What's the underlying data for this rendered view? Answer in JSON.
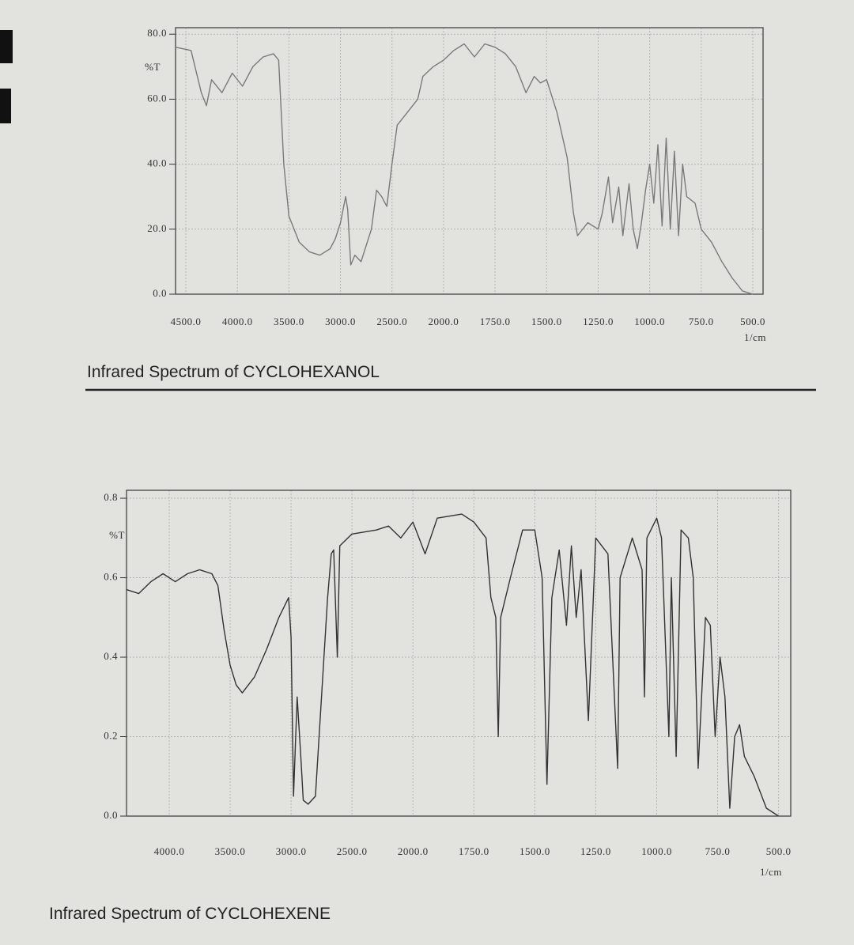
{
  "chart_data": [
    {
      "type": "line",
      "title": "Infrared Spectrum of CYCLOHEXANOL",
      "y_label": "%T",
      "x_label": "1/cm",
      "color": "#7a7a7a",
      "grid": true,
      "xlim": [
        4600,
        450
      ],
      "ylim": [
        0,
        82
      ],
      "xticks": [
        {
          "value": 4500,
          "label": "4500.0"
        },
        {
          "value": 4000,
          "label": "4000.0"
        },
        {
          "value": 3500,
          "label": "3500.0"
        },
        {
          "value": 3000,
          "label": "3000.0"
        },
        {
          "value": 2500,
          "label": "2500.0"
        },
        {
          "value": 2000,
          "label": "2000.0"
        },
        {
          "value": 1750,
          "label": "1750.0"
        },
        {
          "value": 1500,
          "label": "1500.0"
        },
        {
          "value": 1250,
          "label": "1250.0"
        },
        {
          "value": 1000,
          "label": "1000.0"
        },
        {
          "value": 750,
          "label": "750.0"
        },
        {
          "value": 500,
          "label": "500.0"
        }
      ],
      "yticks": [
        {
          "value": 0,
          "label": "0.0"
        },
        {
          "value": 20,
          "label": "20.0"
        },
        {
          "value": 40,
          "label": "40.0"
        },
        {
          "value": 60,
          "label": "60.0"
        },
        {
          "value": 80,
          "label": "80.0"
        }
      ],
      "x": [
        4600,
        4450,
        4350,
        4300,
        4250,
        4150,
        4050,
        3950,
        3850,
        3750,
        3650,
        3600,
        3550,
        3500,
        3400,
        3300,
        3200,
        3100,
        3050,
        3000,
        2950,
        2930,
        2900,
        2860,
        2800,
        2700,
        2650,
        2600,
        2550,
        2500,
        2450,
        2350,
        2250,
        2200,
        2100,
        2000,
        1950,
        1900,
        1850,
        1800,
        1750,
        1700,
        1650,
        1600,
        1560,
        1530,
        1500,
        1450,
        1400,
        1370,
        1350,
        1300,
        1250,
        1230,
        1200,
        1180,
        1150,
        1130,
        1100,
        1080,
        1060,
        1040,
        1020,
        1000,
        980,
        960,
        940,
        920,
        900,
        880,
        860,
        840,
        820,
        780,
        750,
        700,
        650,
        600,
        550,
        500
      ],
      "values": [
        76,
        75,
        62,
        58,
        66,
        62,
        68,
        64,
        70,
        73,
        74,
        72,
        40,
        24,
        16,
        13,
        12,
        14,
        17,
        22,
        30,
        26,
        9,
        12,
        10,
        20,
        32,
        30,
        27,
        40,
        52,
        56,
        60,
        67,
        70,
        72,
        75,
        77,
        73,
        77,
        76,
        74,
        70,
        62,
        67,
        65,
        66,
        56,
        42,
        25,
        18,
        22,
        20,
        25,
        36,
        22,
        33,
        18,
        34,
        20,
        14,
        22,
        32,
        40,
        28,
        46,
        21,
        48,
        20,
        44,
        18,
        40,
        30,
        28,
        20,
        16,
        10,
        5,
        1,
        0
      ]
    },
    {
      "type": "line",
      "title": "Infrared Spectrum of CYCLOHEXENE",
      "y_label": "%T",
      "x_label": "1/cm",
      "color": "#333333",
      "grid": true,
      "xlim": [
        4350,
        450
      ],
      "ylim": [
        0,
        0.82
      ],
      "xticks": [
        {
          "value": 4000,
          "label": "4000.0"
        },
        {
          "value": 3500,
          "label": "3500.0"
        },
        {
          "value": 3000,
          "label": "3000.0"
        },
        {
          "value": 2500,
          "label": "2500.0"
        },
        {
          "value": 2000,
          "label": "2000.0"
        },
        {
          "value": 1750,
          "label": "1750.0"
        },
        {
          "value": 1500,
          "label": "1500.0"
        },
        {
          "value": 1250,
          "label": "1250.0"
        },
        {
          "value": 1000,
          "label": "1000.0"
        },
        {
          "value": 750,
          "label": "750.0"
        },
        {
          "value": 500,
          "label": "500.0"
        }
      ],
      "yticks": [
        {
          "value": 0,
          "label": "0.0"
        },
        0.2,
        0.4,
        0.6,
        0.8
      ],
      "x": [
        4350,
        4250,
        4150,
        4050,
        3950,
        3850,
        3750,
        3650,
        3600,
        3550,
        3500,
        3450,
        3400,
        3300,
        3200,
        3100,
        3020,
        3000,
        2980,
        2950,
        2920,
        2900,
        2860,
        2800,
        2750,
        2700,
        2670,
        2650,
        2620,
        2600,
        2500,
        2300,
        2200,
        2100,
        2000,
        1950,
        1900,
        1800,
        1750,
        1700,
        1680,
        1660,
        1650,
        1640,
        1600,
        1550,
        1500,
        1470,
        1450,
        1430,
        1400,
        1370,
        1350,
        1330,
        1310,
        1280,
        1250,
        1200,
        1160,
        1150,
        1100,
        1060,
        1050,
        1040,
        1000,
        980,
        950,
        940,
        920,
        900,
        870,
        850,
        830,
        800,
        780,
        760,
        740,
        720,
        700,
        680,
        660,
        640,
        600,
        550,
        500
      ],
      "values": [
        0.57,
        0.56,
        0.59,
        0.61,
        0.59,
        0.61,
        0.62,
        0.61,
        0.58,
        0.47,
        0.38,
        0.33,
        0.31,
        0.35,
        0.42,
        0.5,
        0.55,
        0.45,
        0.05,
        0.3,
        0.15,
        0.04,
        0.03,
        0.05,
        0.3,
        0.55,
        0.66,
        0.67,
        0.4,
        0.68,
        0.71,
        0.72,
        0.73,
        0.7,
        0.74,
        0.66,
        0.75,
        0.76,
        0.74,
        0.7,
        0.55,
        0.5,
        0.2,
        0.5,
        0.6,
        0.72,
        0.72,
        0.6,
        0.08,
        0.55,
        0.67,
        0.48,
        0.68,
        0.5,
        0.62,
        0.24,
        0.7,
        0.66,
        0.12,
        0.6,
        0.7,
        0.62,
        0.3,
        0.7,
        0.75,
        0.7,
        0.2,
        0.6,
        0.15,
        0.72,
        0.7,
        0.6,
        0.12,
        0.5,
        0.48,
        0.2,
        0.4,
        0.3,
        0.02,
        0.2,
        0.23,
        0.15,
        0.1,
        0.02,
        0
      ]
    }
  ]
}
